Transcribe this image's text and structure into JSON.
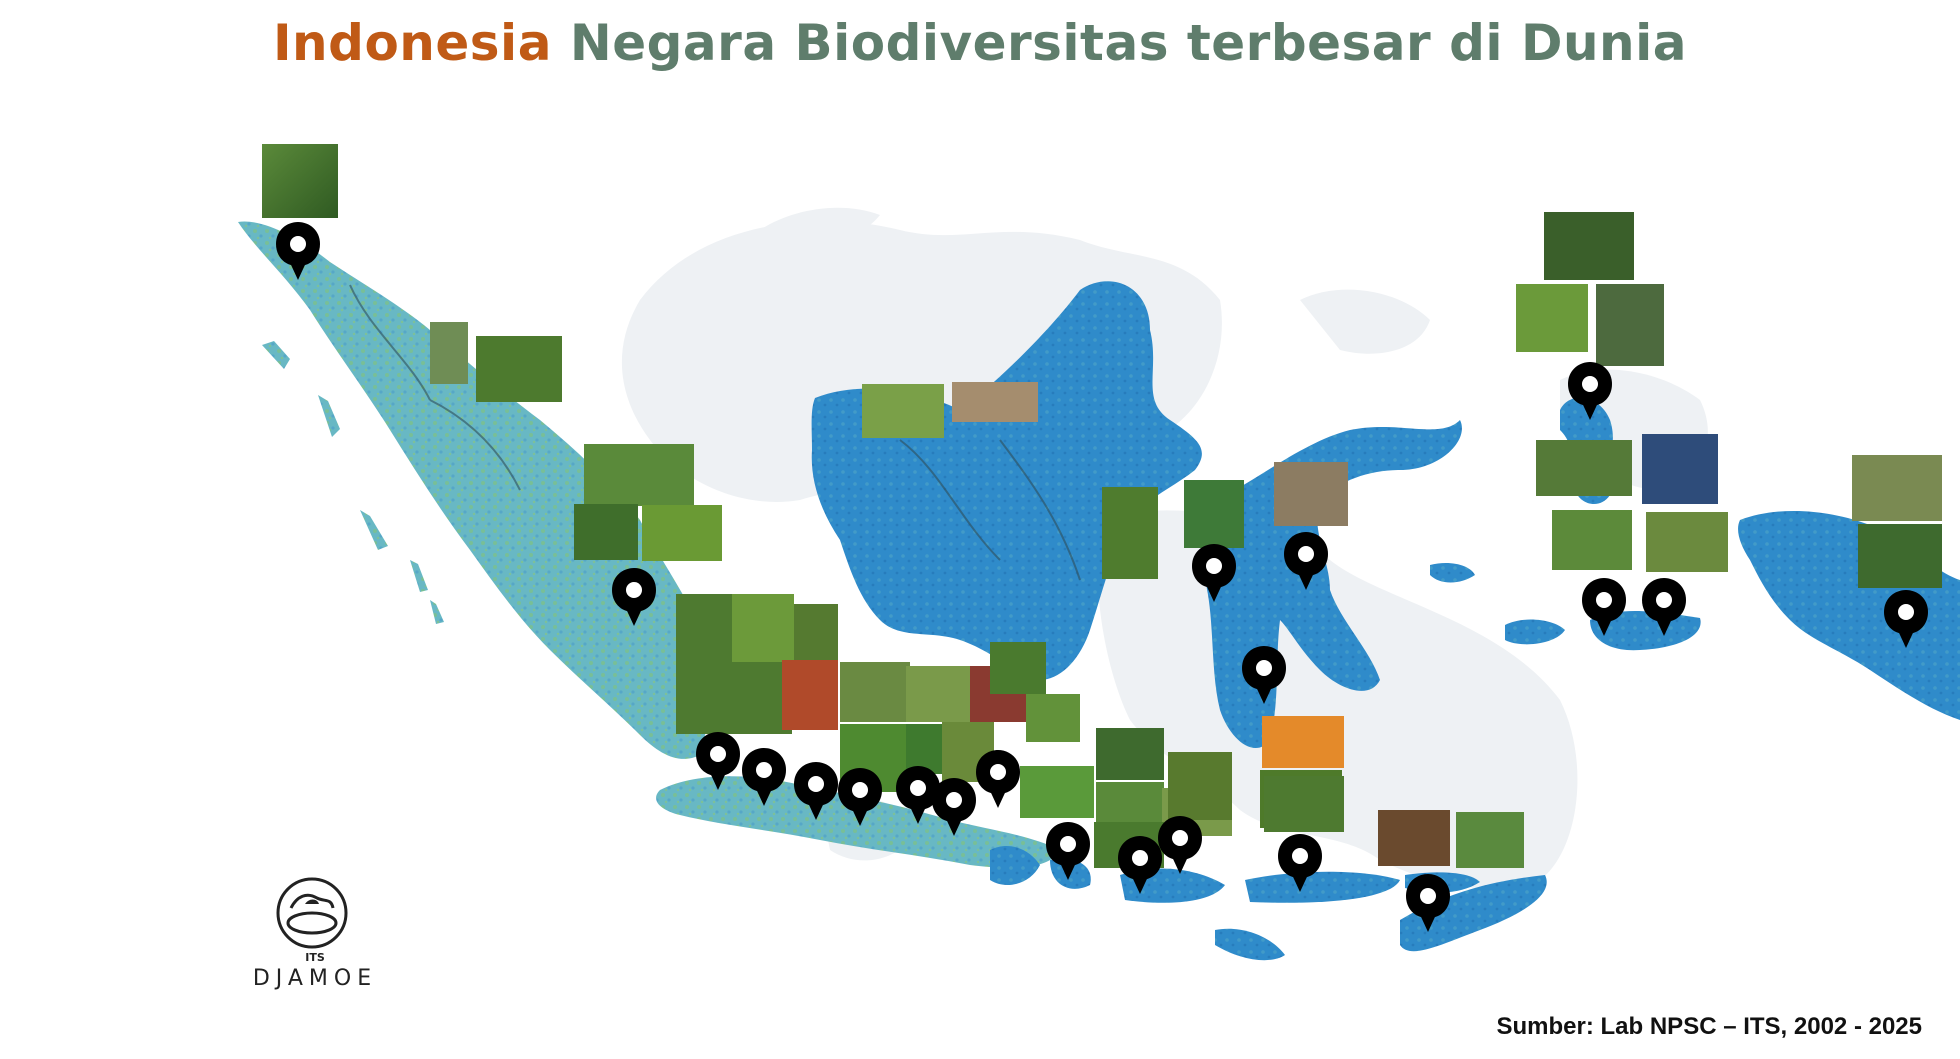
{
  "title": {
    "part1": "Indonesia",
    "part2": "Negara Biodiversitas terbesar di Dunia"
  },
  "source": "Sumber: Lab NPSC – ITS, 2002 - 2025",
  "logo": {
    "small": "ITS",
    "name": "DJAMOE"
  },
  "colors": {
    "title_accent": "#c05a16",
    "title_main": "#5f7d6c",
    "sumatra_java": "#6ab7c2",
    "islands": "#2e86c9",
    "world_bg": "#eef1f4",
    "pin": "#000000"
  },
  "icons": [
    "location-pin-icon",
    "djamoe-logo-icon"
  ]
}
